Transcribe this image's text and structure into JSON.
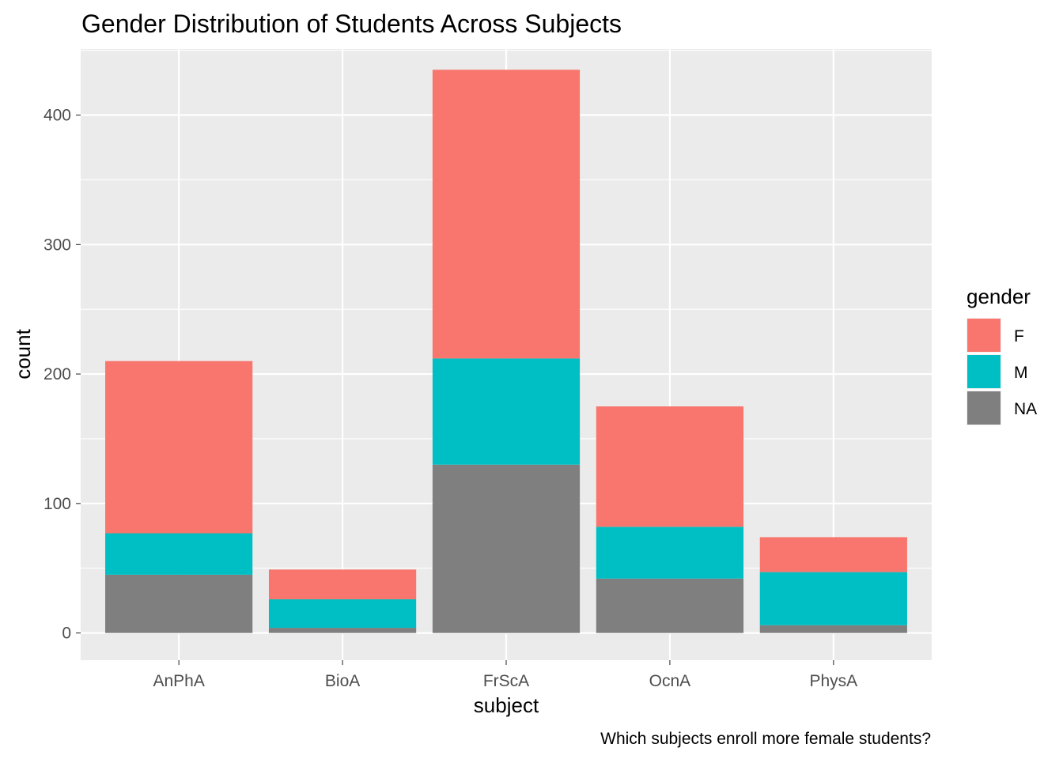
{
  "chart_data": {
    "type": "bar",
    "stacked": true,
    "title": "Gender Distribution of Students Across Subjects",
    "xlabel": "subject",
    "ylabel": "count",
    "caption": "Which subjects enroll more female students?",
    "categories": [
      "AnPhA",
      "BioA",
      "FrScA",
      "OcnA",
      "PhysA"
    ],
    "series": [
      {
        "name": "NA",
        "color": "#7f7f7f",
        "values": [
          45,
          4,
          130,
          42,
          6
        ]
      },
      {
        "name": "M",
        "color": "#00bfc4",
        "values": [
          32,
          22,
          82,
          40,
          41
        ]
      },
      {
        "name": "F",
        "color": "#f8766d",
        "values": [
          133,
          23,
          223,
          93,
          27
        ]
      }
    ],
    "legend": {
      "title": "gender",
      "entries": [
        {
          "label": "F",
          "color": "#f8766d"
        },
        {
          "label": "M",
          "color": "#00bfc4"
        },
        {
          "label": "NA",
          "color": "#7f7f7f"
        }
      ],
      "position": "right"
    },
    "ylim": [
      -21,
      451
    ],
    "yticks": [
      0,
      100,
      200,
      300,
      400
    ],
    "grid": true,
    "panel_background": "#ebebeb"
  }
}
